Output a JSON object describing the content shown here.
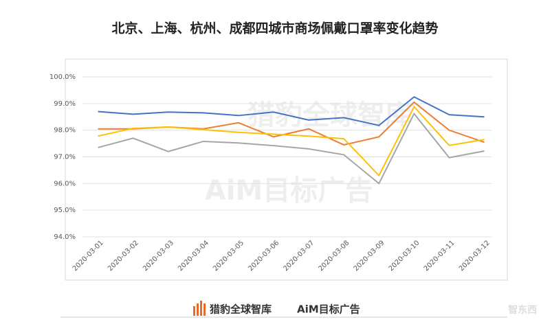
{
  "chart_data": {
    "type": "line",
    "title": "北京、上海、杭州、成都四城市商场佩戴口罩率变化趋势",
    "categories": [
      "2020-03-01",
      "2020-03-02",
      "2020-03-03",
      "2020-03-04",
      "2020-03-05",
      "2020-03-06",
      "2020-03-07",
      "2020-03-08",
      "2020-03-09",
      "2020-03-10",
      "2020-03-11",
      "2020-03-12"
    ],
    "series": [
      {
        "color": "#4472c4",
        "values": [
          98.7,
          98.6,
          98.68,
          98.65,
          98.55,
          98.68,
          98.38,
          98.47,
          98.18,
          99.25,
          98.58,
          98.5
        ]
      },
      {
        "color": "#ed7d31",
        "values": [
          98.05,
          98.05,
          98.12,
          98.05,
          98.28,
          97.75,
          98.05,
          97.45,
          97.75,
          99.05,
          98.0,
          97.55
        ]
      },
      {
        "color": "#a5a5a5",
        "values": [
          97.35,
          97.7,
          97.2,
          97.58,
          97.52,
          97.42,
          97.3,
          97.08,
          96.0,
          98.62,
          96.97,
          97.22
        ]
      },
      {
        "color": "#ffc000",
        "values": [
          97.78,
          98.07,
          98.12,
          98.02,
          97.92,
          97.85,
          97.78,
          97.68,
          96.3,
          98.88,
          97.43,
          97.65
        ]
      }
    ],
    "ylim": [
      94,
      100
    ],
    "yticks": [
      {
        "value": 94,
        "label": "94.0%"
      },
      {
        "value": 95,
        "label": "95.0%"
      },
      {
        "value": 96,
        "label": "96.0%"
      },
      {
        "value": 97,
        "label": "97.0%"
      },
      {
        "value": 98,
        "label": "98.0%"
      },
      {
        "value": 99,
        "label": "99.0%"
      },
      {
        "value": 100,
        "label": "100.0%"
      }
    ],
    "grid": true,
    "watermarks": [
      "猎豹全球智库",
      "AiM目标广告"
    ],
    "footer_logos": [
      "猎豹全球智库",
      "AiM目标广告"
    ],
    "corner_mark": "智东西"
  }
}
